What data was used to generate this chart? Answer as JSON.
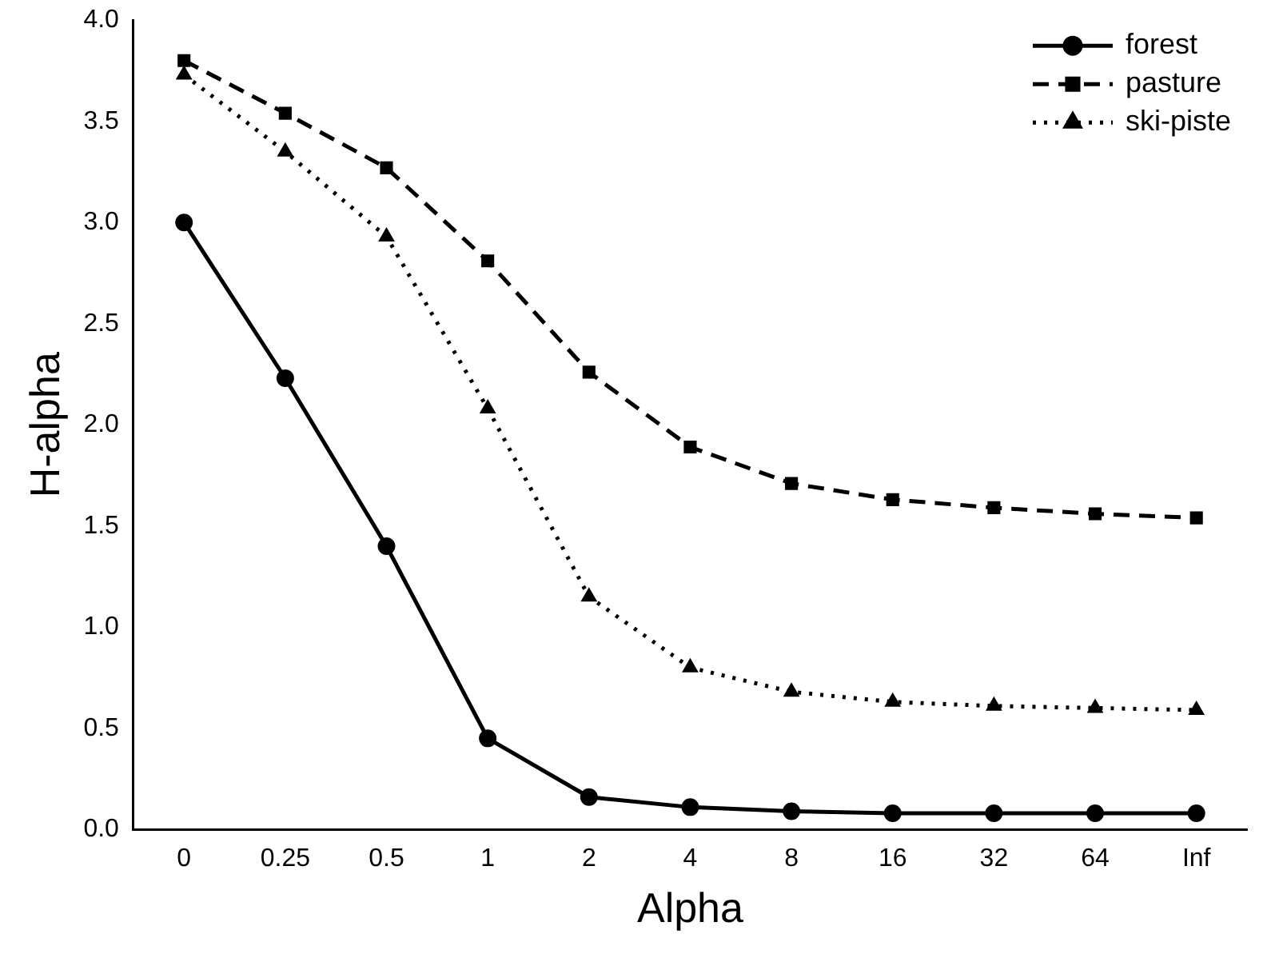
{
  "chart_data": {
    "type": "line",
    "xlabel": "Alpha",
    "ylabel": "H-alpha",
    "categories": [
      "0",
      "0.25",
      "0.5",
      "1",
      "2",
      "4",
      "8",
      "16",
      "32",
      "64",
      "Inf"
    ],
    "ylim": [
      0,
      4
    ],
    "yticks": [
      {
        "value": 0,
        "label": "0.0"
      },
      {
        "value": 0.5,
        "label": "0.5"
      },
      {
        "value": 1,
        "label": "1.0"
      },
      {
        "value": 1.5,
        "label": "1.5"
      },
      {
        "value": 2,
        "label": "2.0"
      },
      {
        "value": 2.5,
        "label": "2.5"
      },
      {
        "value": 3,
        "label": "3.0"
      },
      {
        "value": 3.5,
        "label": "3.5"
      },
      {
        "value": 4,
        "label": "4.0"
      }
    ],
    "grid": false,
    "legend": "top right",
    "series": [
      {
        "name": "forest",
        "color": "#000000",
        "marker": "circle",
        "line_style": "solid",
        "values": [
          3.0,
          2.23,
          1.4,
          0.45,
          0.16,
          0.11,
          0.09,
          0.08,
          0.08,
          0.08,
          0.08
        ]
      },
      {
        "name": "pasture",
        "color": "#000000",
        "marker": "square",
        "line_style": "dashed",
        "values": [
          3.8,
          3.54,
          3.27,
          2.81,
          2.26,
          1.89,
          1.71,
          1.63,
          1.59,
          1.56,
          1.54
        ]
      },
      {
        "name": "ski-piste",
        "color": "#000000",
        "marker": "triangle",
        "line_style": "dotted",
        "values": [
          3.73,
          3.35,
          2.93,
          2.08,
          1.15,
          0.8,
          0.68,
          0.63,
          0.61,
          0.6,
          0.59
        ]
      }
    ]
  }
}
